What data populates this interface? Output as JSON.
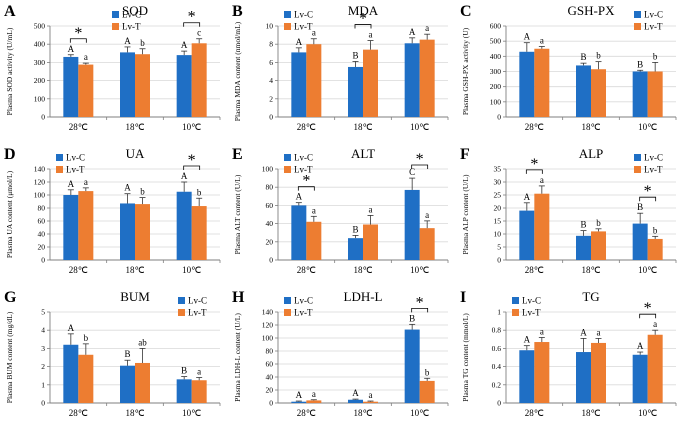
{
  "colors": {
    "lv_c": "#1F6FC5",
    "lv_t": "#ED7D31",
    "axis": "#7F7F7F",
    "grid": "#D9D9D9",
    "text": "#000000"
  },
  "chart_data": [
    {
      "type": "bar",
      "letter": "A",
      "title": "SOD",
      "ylabel": "Plasma SOD activity (U/mL)",
      "ylim": [
        0,
        500
      ],
      "yticks": [
        0,
        100,
        200,
        300,
        400,
        500
      ],
      "categories": [
        "28℃",
        "18℃",
        "10℃"
      ],
      "series": [
        {
          "name": "Lv-C",
          "values": [
            330,
            355,
            340
          ],
          "errors": [
            12,
            30,
            22
          ],
          "letters": [
            "A",
            "A",
            "A"
          ]
        },
        {
          "name": "Lv-T",
          "values": [
            288,
            345,
            405
          ],
          "errors": [
            8,
            30,
            25
          ],
          "letters": [
            "a",
            "b",
            "c"
          ]
        }
      ],
      "significance": [
        0,
        2
      ],
      "legend": "top-center"
    },
    {
      "type": "bar",
      "letter": "B",
      "title": "MDA",
      "ylabel": "Plasma MDA content (nmol/mL)",
      "ylim": [
        0,
        10
      ],
      "yticks": [
        0,
        2,
        4,
        6,
        8,
        10
      ],
      "categories": [
        "28℃",
        "18℃",
        "10℃"
      ],
      "series": [
        {
          "name": "Lv-C",
          "values": [
            7.1,
            5.5,
            8.1
          ],
          "errors": [
            0.5,
            0.6,
            0.6
          ],
          "letters": [
            "A",
            "B",
            "A"
          ]
        },
        {
          "name": "Lv-T",
          "values": [
            8.0,
            7.4,
            8.5
          ],
          "errors": [
            0.6,
            1.0,
            0.6
          ],
          "letters": [
            "a",
            "a",
            "a"
          ]
        }
      ],
      "significance": [
        1
      ],
      "legend": "top-left"
    },
    {
      "type": "bar",
      "letter": "C",
      "title": "GSH-PX",
      "ylabel": "Plasma GSH-PX activity (U)",
      "ylim": [
        0,
        600
      ],
      "yticks": [
        0,
        100,
        200,
        300,
        400,
        500,
        600
      ],
      "categories": [
        "28℃",
        "18℃",
        "10℃"
      ],
      "series": [
        {
          "name": "Lv-C",
          "values": [
            430,
            340,
            300
          ],
          "errors": [
            60,
            15,
            8
          ],
          "letters": [
            "A",
            "B",
            "B"
          ]
        },
        {
          "name": "Lv-T",
          "values": [
            450,
            315,
            300
          ],
          "errors": [
            15,
            50,
            60
          ],
          "letters": [
            "a",
            "b",
            "b"
          ]
        }
      ],
      "significance": [],
      "legend": "top-right"
    },
    {
      "type": "bar",
      "letter": "D",
      "title": "UA",
      "ylabel": "Plasma UA content (μmol/L)",
      "ylim": [
        0,
        140
      ],
      "yticks": [
        0,
        20,
        40,
        60,
        80,
        100,
        120,
        140
      ],
      "categories": [
        "28℃",
        "18℃",
        "10℃"
      ],
      "series": [
        {
          "name": "Lv-C",
          "values": [
            100,
            87,
            105
          ],
          "errors": [
            8,
            15,
            15
          ],
          "letters": [
            "A",
            "A",
            "A"
          ]
        },
        {
          "name": "Lv-T",
          "values": [
            106,
            86,
            83
          ],
          "errors": [
            5,
            10,
            12
          ],
          "letters": [
            "a",
            "b",
            "b"
          ]
        }
      ],
      "significance": [
        2
      ],
      "legend": "top-left"
    },
    {
      "type": "bar",
      "letter": "E",
      "title": "ALT",
      "ylabel": "Plasma ALT content (U/L)",
      "ylim": [
        0,
        100
      ],
      "yticks": [
        0,
        20,
        40,
        60,
        80,
        100
      ],
      "categories": [
        "28℃",
        "18℃",
        "10℃"
      ],
      "series": [
        {
          "name": "Lv-C",
          "values": [
            60,
            24,
            77
          ],
          "errors": [
            3,
            3,
            13
          ],
          "letters": [
            "A",
            "B",
            "C"
          ]
        },
        {
          "name": "Lv-T",
          "values": [
            42,
            39,
            35
          ],
          "errors": [
            6,
            10,
            8
          ],
          "letters": [
            "a",
            "a",
            "a"
          ]
        }
      ],
      "significance": [
        0,
        2
      ],
      "legend": "top-left"
    },
    {
      "type": "bar",
      "letter": "F",
      "title": "ALP",
      "ylabel": "Plasma ALP content (U/L)",
      "ylim": [
        0,
        35
      ],
      "yticks": [
        0,
        5,
        10,
        15,
        20,
        25,
        30,
        35
      ],
      "categories": [
        "28℃",
        "18℃",
        "10℃"
      ],
      "series": [
        {
          "name": "Lv-C",
          "values": [
            19,
            9.3,
            14
          ],
          "errors": [
            3,
            2,
            4
          ],
          "letters": [
            "A",
            "B",
            "B"
          ]
        },
        {
          "name": "Lv-T",
          "values": [
            25.5,
            11,
            8.1
          ],
          "errors": [
            3,
            1,
            1
          ],
          "letters": [
            "a",
            "b",
            "b"
          ]
        }
      ],
      "significance": [
        0,
        2
      ],
      "legend": "top-right"
    },
    {
      "type": "bar",
      "letter": "G",
      "title": "BUM",
      "ylabel": "Plasma BUM content (mg/dL)",
      "ylim": [
        0,
        5
      ],
      "yticks": [
        0,
        1,
        2,
        3,
        4,
        5
      ],
      "categories": [
        "28℃",
        "18℃",
        "10℃"
      ],
      "series": [
        {
          "name": "Lv-C",
          "values": [
            3.2,
            2.05,
            1.3
          ],
          "errors": [
            0.6,
            0.3,
            0.15
          ],
          "letters": [
            "A",
            "B",
            "B"
          ]
        },
        {
          "name": "Lv-T",
          "values": [
            2.65,
            2.2,
            1.25
          ],
          "errors": [
            0.6,
            0.8,
            0.15
          ],
          "letters": [
            "b",
            "ab",
            "a"
          ]
        }
      ],
      "significance": [],
      "legend": "top-right"
    },
    {
      "type": "bar",
      "letter": "H",
      "title": "LDH-L",
      "ylabel": "Plasma LDH-L content (U/L)",
      "ylim": [
        0,
        140
      ],
      "yticks": [
        0,
        20,
        40,
        60,
        80,
        100,
        120,
        140
      ],
      "categories": [
        "28℃",
        "18℃",
        "10℃"
      ],
      "series": [
        {
          "name": "Lv-C",
          "values": [
            2,
            5,
            113
          ],
          "errors": [
            1,
            1,
            8
          ],
          "letters": [
            "A",
            "A",
            "B"
          ]
        },
        {
          "name": "Lv-T",
          "values": [
            4,
            2,
            34
          ],
          "errors": [
            1,
            1,
            4
          ],
          "letters": [
            "a",
            "a",
            "b"
          ]
        }
      ],
      "significance": [
        2
      ],
      "legend": "top-left"
    },
    {
      "type": "bar",
      "letter": "I",
      "title": "TG",
      "ylabel": "Plasma TG content (mmol/L)",
      "ylim": [
        0,
        1
      ],
      "yticks": [
        0,
        0.2,
        0.4,
        0.6,
        0.8,
        1
      ],
      "categories": [
        "28℃",
        "18℃",
        "10℃"
      ],
      "series": [
        {
          "name": "Lv-C",
          "values": [
            0.58,
            0.56,
            0.53
          ],
          "errors": [
            0.05,
            0.15,
            0.03
          ],
          "letters": [
            "A",
            "A",
            "A"
          ]
        },
        {
          "name": "Lv-T",
          "values": [
            0.67,
            0.66,
            0.75
          ],
          "errors": [
            0.05,
            0.05,
            0.05
          ],
          "letters": [
            "a",
            "a",
            "a"
          ]
        }
      ],
      "significance": [
        2
      ],
      "legend": "top-left"
    }
  ]
}
